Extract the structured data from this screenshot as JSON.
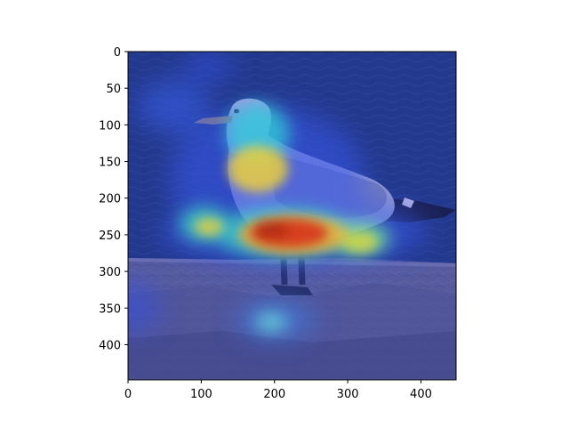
{
  "figure": {
    "image_semantic": "seagull-on-rock-with-attention-heatmap-overlay",
    "x_ticks": [
      0,
      100,
      200,
      300,
      400
    ],
    "y_ticks": [
      0,
      50,
      100,
      150,
      200,
      250,
      300,
      350,
      400
    ],
    "xlim": [
      0,
      448
    ],
    "ylim": [
      448,
      0
    ],
    "colormap": "jet",
    "colors": {
      "water": "#253d7a",
      "rock": "#6c6c92",
      "gull_body": "#bfc4da",
      "wing_tip": "#1a1d2c",
      "heat_low": "#2a38d8",
      "heat_mid": "#2ee0d0",
      "heat_warm": "#f0d030",
      "heat_high": "#d42410"
    }
  }
}
